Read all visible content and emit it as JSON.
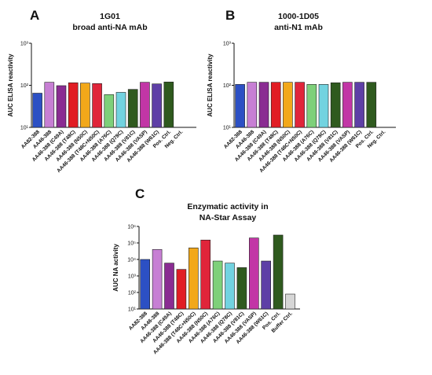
{
  "colors": [
    "#2c50c4",
    "#c77fd4",
    "#8a2c92",
    "#e11d24",
    "#f2a81a",
    "#e0253a",
    "#7ed07a",
    "#72d3e0",
    "#2f5a1e",
    "#c236a6",
    "#5e3fa6",
    "#2f5a1e",
    "#d6d6d6"
  ],
  "chart_data": [
    {
      "type": "bar",
      "panel": "A",
      "title": [
        "1G01",
        "broad anti-NA mAb"
      ],
      "ylabel": "AUC ELISA reactivity",
      "yscale": "log",
      "ylim": [
        10,
        1000
      ],
      "yticks": [
        "10¹",
        "10²",
        "10³"
      ],
      "categories": [
        "AA82-388",
        "AA46-388",
        "AA46-388 (C49A)",
        "AA46-388 (T48C)",
        "AA46-388 (N50C)",
        "AA46-388 (T48C+N50C)",
        "AA46-388 (A76C)",
        "AA46-388 (Q78C)",
        "AA46-388 (V81C)",
        "AA46-388 (VASP)",
        "AA46-388 (W61C)",
        "Pos. Ctrl.",
        "Neg. Ctrl."
      ],
      "values": [
        65,
        118,
        98,
        115,
        113,
        110,
        60,
        68,
        80,
        118,
        108,
        120,
        null
      ]
    },
    {
      "type": "bar",
      "panel": "B",
      "title": [
        "1000-1D05",
        "anti-N1 mAb"
      ],
      "ylabel": "AUC ELISA reactivity",
      "yscale": "log",
      "ylim": [
        10,
        1000
      ],
      "yticks": [
        "10¹",
        "10²",
        "10³"
      ],
      "categories": [
        "AA82-388",
        "AA46-388",
        "AA46-388 (C49A)",
        "AA46-388 (T48C)",
        "AA46-388 (N50C)",
        "AA46-388 (T48C+N50C)",
        "AA46-388 (A76C)",
        "AA46-388 (Q78C)",
        "AA46-388 (V81C)",
        "AA46-388 (VASP)",
        "AA46-388 (W61C)",
        "Pos. Ctrl.",
        "Neg. Ctrl."
      ],
      "values": [
        105,
        118,
        118,
        118,
        118,
        118,
        105,
        105,
        115,
        118,
        118,
        118,
        null
      ]
    },
    {
      "type": "bar",
      "panel": "C",
      "title": [
        "Enzymatic activity in",
        "NA-Star Assay"
      ],
      "ylabel": "AUC NA activity",
      "yscale": "log",
      "ylim": [
        10,
        1000000
      ],
      "yticks": [
        "10¹",
        "10²",
        "10³",
        "10⁴",
        "10⁵",
        "10⁶"
      ],
      "categories": [
        "AA82-388",
        "AA46-388",
        "AA46-388 (C49A)",
        "AA46-388 (T48C)",
        "AA46-388 (T48C+N50C)",
        "AA46-388 (N50C)",
        "AA46-388 (A76C)",
        "AA46-388 (Q78C)",
        "AA46-388 (V81C)",
        "AA46-388 (VASP)",
        "AA46-388 (W61C)",
        "Pos. Ctrl.",
        "Buffer Ctrl."
      ],
      "values": [
        10000,
        40000,
        6000,
        2500,
        50000,
        150000,
        8000,
        6000,
        3200,
        200000,
        8000,
        300000,
        80
      ]
    }
  ]
}
